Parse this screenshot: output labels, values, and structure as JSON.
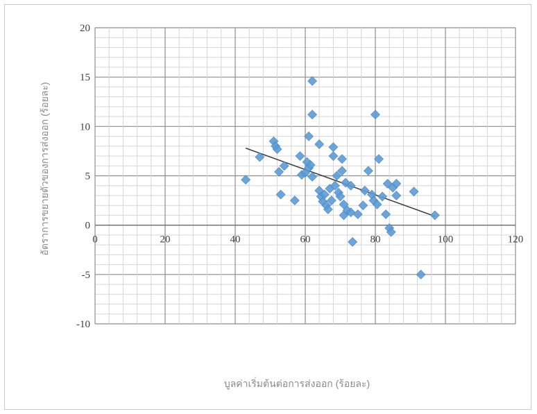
{
  "chart_data": {
    "type": "scatter",
    "title": "",
    "xlabel": "บูลค่าเริ่มต้นต่อการส่งออก (ร้อยละ)",
    "ylabel": "อัตราการขยายตัวของการส่งออก (ร้อยละ)",
    "xlim": [
      0,
      120
    ],
    "ylim": [
      -10,
      20
    ],
    "x_ticks": [
      "0",
      "20",
      "40",
      "60",
      "80",
      "100",
      "120"
    ],
    "y_ticks": [
      "20",
      "15",
      "10",
      "5",
      "0",
      "-5",
      "-10"
    ],
    "grid": true,
    "legend": "none",
    "series": [
      {
        "color": "#5b9bd5",
        "points": [
          [
            43,
            4.6
          ],
          [
            47,
            6.9
          ],
          [
            51,
            8.5
          ],
          [
            51.5,
            8.0
          ],
          [
            52,
            7.7
          ],
          [
            52.5,
            5.4
          ],
          [
            53,
            3.1
          ],
          [
            54,
            6.0
          ],
          [
            57,
            2.5
          ],
          [
            58.5,
            7.0
          ],
          [
            59,
            5.1
          ],
          [
            60,
            5.3
          ],
          [
            60.5,
            6.4
          ],
          [
            61,
            9.0
          ],
          [
            61,
            5.8
          ],
          [
            61.5,
            6.1
          ],
          [
            62,
            14.6
          ],
          [
            62,
            11.2
          ],
          [
            62,
            4.9
          ],
          [
            64,
            8.2
          ],
          [
            64,
            3.5
          ],
          [
            64.5,
            2.9
          ],
          [
            65,
            2.4
          ],
          [
            65.5,
            3.1
          ],
          [
            66,
            2.0
          ],
          [
            66.5,
            1.6
          ],
          [
            67,
            3.7
          ],
          [
            67.5,
            2.5
          ],
          [
            68,
            7.9
          ],
          [
            68,
            7.0
          ],
          [
            68.5,
            4.0
          ],
          [
            69,
            5.0
          ],
          [
            69.5,
            3.3
          ],
          [
            70,
            2.9
          ],
          [
            70.5,
            6.7
          ],
          [
            70.5,
            5.5
          ],
          [
            71,
            2.1
          ],
          [
            71,
            1.0
          ],
          [
            71.5,
            4.3
          ],
          [
            72,
            1.5
          ],
          [
            73,
            4.0
          ],
          [
            73,
            1.3
          ],
          [
            73.5,
            -1.7
          ],
          [
            75,
            1.1
          ],
          [
            76.5,
            2.0
          ],
          [
            77,
            3.5
          ],
          [
            78,
            5.5
          ],
          [
            79,
            3.1
          ],
          [
            79.5,
            2.5
          ],
          [
            80,
            11.2
          ],
          [
            80.5,
            2.1
          ],
          [
            81,
            6.7
          ],
          [
            82,
            2.9
          ],
          [
            83,
            1.1
          ],
          [
            83.5,
            4.2
          ],
          [
            84,
            -0.3
          ],
          [
            84.5,
            -0.7
          ],
          [
            85,
            3.8
          ],
          [
            86,
            4.2
          ],
          [
            86,
            3.0
          ],
          [
            91,
            3.4
          ],
          [
            93,
            -5.0
          ],
          [
            97,
            1.0
          ]
        ]
      }
    ],
    "trendline": {
      "type": "linear",
      "color": "#404040",
      "from": [
        43,
        7.8
      ],
      "to": [
        97,
        0.9
      ]
    }
  }
}
